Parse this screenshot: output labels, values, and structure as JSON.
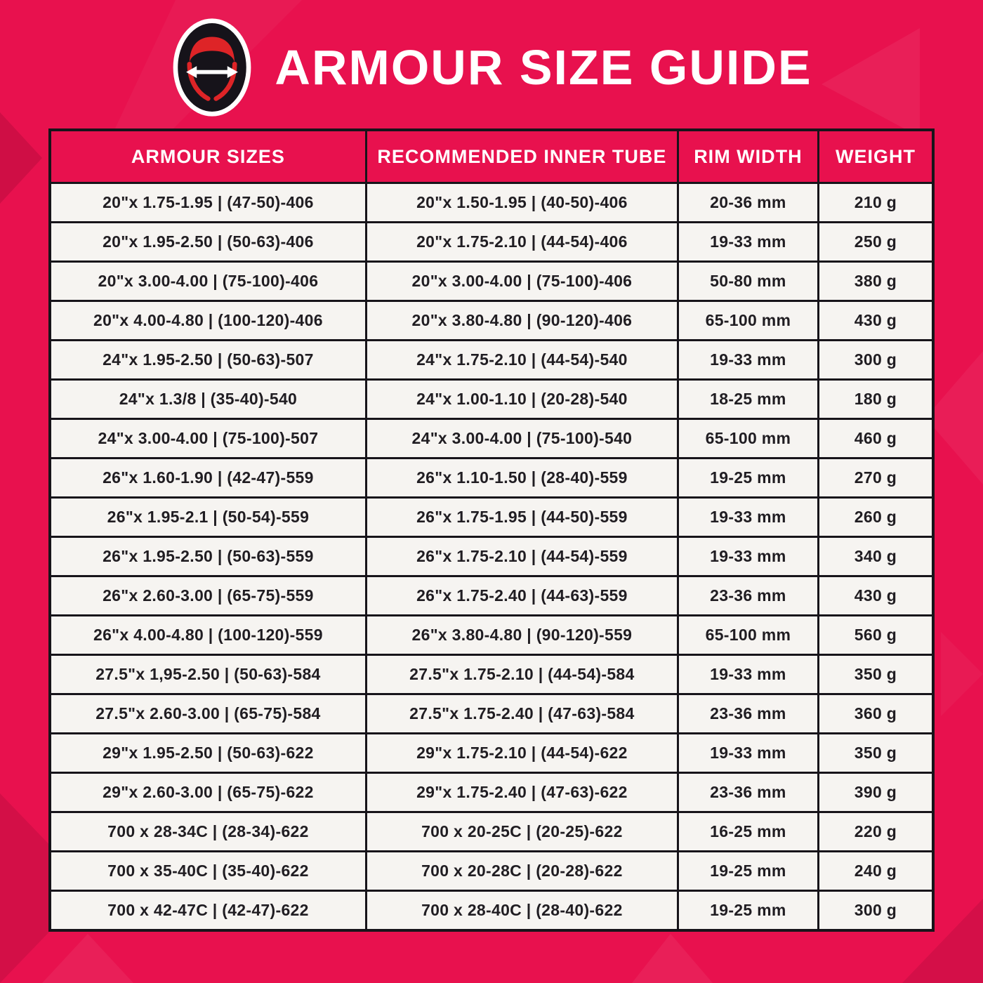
{
  "page": {
    "title": "ARMOUR SIZE GUIDE",
    "background_color": "#E8114E",
    "border_color": "#17141A",
    "header_text_color": "#FFFFFF",
    "cell_background": "#F6F4F1",
    "logo_red": "#DE2427"
  },
  "logo": {
    "icon": "tire-width-arrow-logo"
  },
  "table": {
    "columns": [
      "ARMOUR SIZES",
      "RECOMMENDED INNER TUBE",
      "RIM WIDTH",
      "WEIGHT"
    ],
    "rows": [
      [
        "20\"x 1.75-1.95 | (47-50)-406",
        "20\"x 1.50-1.95 | (40-50)-406",
        "20-36 mm",
        "210 g"
      ],
      [
        "20\"x 1.95-2.50 | (50-63)-406",
        "20\"x 1.75-2.10 | (44-54)-406",
        "19-33 mm",
        "250 g"
      ],
      [
        "20\"x 3.00-4.00 | (75-100)-406",
        "20\"x 3.00-4.00 | (75-100)-406",
        "50-80 mm",
        "380 g"
      ],
      [
        "20\"x 4.00-4.80 | (100-120)-406",
        "20\"x 3.80-4.80 | (90-120)-406",
        "65-100 mm",
        "430 g"
      ],
      [
        "24\"x 1.95-2.50 | (50-63)-507",
        "24\"x 1.75-2.10 | (44-54)-540",
        "19-33 mm",
        "300 g"
      ],
      [
        "24\"x 1.3/8 | (35-40)-540",
        "24\"x 1.00-1.10 | (20-28)-540",
        "18-25 mm",
        "180 g"
      ],
      [
        "24\"x 3.00-4.00 | (75-100)-507",
        "24\"x 3.00-4.00 | (75-100)-540",
        "65-100 mm",
        "460 g"
      ],
      [
        "26\"x 1.60-1.90 | (42-47)-559",
        "26\"x 1.10-1.50 | (28-40)-559",
        "19-25 mm",
        "270 g"
      ],
      [
        "26\"x 1.95-2.1 | (50-54)-559",
        "26\"x 1.75-1.95 | (44-50)-559",
        "19-33 mm",
        "260 g"
      ],
      [
        "26\"x 1.95-2.50 | (50-63)-559",
        "26\"x 1.75-2.10 | (44-54)-559",
        "19-33 mm",
        "340 g"
      ],
      [
        "26\"x 2.60-3.00 | (65-75)-559",
        "26\"x 1.75-2.40 | (44-63)-559",
        "23-36 mm",
        "430 g"
      ],
      [
        "26\"x 4.00-4.80 | (100-120)-559",
        "26\"x 3.80-4.80 | (90-120)-559",
        "65-100 mm",
        "560 g"
      ],
      [
        "27.5\"x 1,95-2.50 | (50-63)-584",
        "27.5\"x 1.75-2.10 | (44-54)-584",
        "19-33 mm",
        "350 g"
      ],
      [
        "27.5\"x 2.60-3.00 | (65-75)-584",
        "27.5\"x 1.75-2.40 | (47-63)-584",
        "23-36 mm",
        "360 g"
      ],
      [
        "29\"x 1.95-2.50 | (50-63)-622",
        "29\"x 1.75-2.10 | (44-54)-622",
        "19-33 mm",
        "350 g"
      ],
      [
        "29\"x 2.60-3.00 | (65-75)-622",
        "29\"x 1.75-2.40 | (47-63)-622",
        "23-36 mm",
        "390 g"
      ],
      [
        "700 x 28-34C | (28-34)-622",
        "700 x 20-25C | (20-25)-622",
        "16-25 mm",
        "220 g"
      ],
      [
        "700 x 35-40C | (35-40)-622",
        "700 x 20-28C | (20-28)-622",
        "19-25 mm",
        "240 g"
      ],
      [
        "700 x 42-47C | (42-47)-622",
        "700 x 28-40C | (28-40)-622",
        "19-25 mm",
        "300 g"
      ]
    ]
  }
}
